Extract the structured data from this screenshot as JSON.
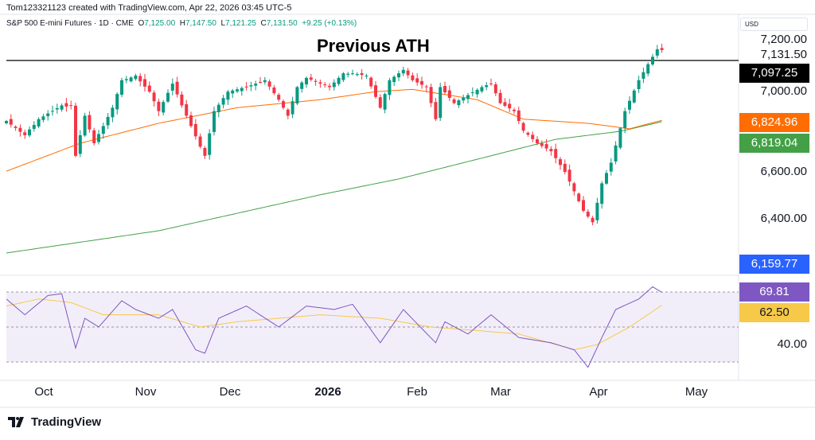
{
  "header": {
    "credit": "Tom123321123 created with TradingView.com, Apr 22, 2026 03:45 UTC-5",
    "symbol": "S&P 500 E-mini Futures · 1D · CME",
    "o_label": "O",
    "open": "7,125.00",
    "h_label": "H",
    "high": "7,147.50",
    "l_label": "L",
    "low": "7,121.25",
    "c_label": "C",
    "close": "7,131.50",
    "change": "+9.25 (+0.13%)"
  },
  "currency": "USD",
  "logo": "TradingView",
  "chart_data": {
    "type": "candlestick",
    "annotation": "Previous ATH",
    "ath_level": 7097.25,
    "closes": [
      6822,
      6806,
      6791,
      6775,
      6760,
      6785,
      6805,
      6830,
      6842,
      6855,
      6866,
      6878,
      6890,
      6885,
      6890,
      6670,
      6760,
      6845,
      6785,
      6725,
      6765,
      6800,
      6840,
      6880,
      6940,
      7000,
      7005,
      7012,
      7020,
      6995,
      6972,
      6950,
      6908,
      6865,
      6905,
      6945,
      6985,
      6938,
      6890,
      6845,
      6800,
      6755,
      6710,
      6670,
      6768,
      6865,
      6893,
      6922,
      6950,
      6955,
      6960,
      6966,
      6972,
      6978,
      6985,
      6992,
      7000,
      6972,
      6943,
      6915,
      6880,
      6845,
      6908,
      6970,
      6990,
      7010,
      7002,
      6993,
      6985,
      6978,
      6970,
      6990,
      7010,
      7030,
      7028,
      7030,
      7027,
      7023,
      7020,
      6973,
      6927,
      6880,
      6940,
      7000,
      7015,
      7030,
      7045,
      7022,
      7000,
      6990,
      6980,
      6970,
      6900,
      6830,
      6970,
      6947,
      6923,
      6900,
      6912,
      6923,
      6935,
      6947,
      6958,
      6970,
      6978,
      6985,
      6943,
      6900,
      6888,
      6877,
      6865,
      6822,
      6780,
      6762,
      6743,
      6725,
      6713,
      6702,
      6690,
      6660,
      6630,
      6600,
      6558,
      6515,
      6472,
      6430,
      6405,
      6380,
      6465,
      6550,
      6595,
      6640,
      6715,
      6790,
      6865,
      6910,
      6955,
      7000,
      7035,
      7070,
      7102,
      7135,
      7131.5
    ],
    "ma_fast": {
      "color": "#ff6d00",
      "last": "6,824.96",
      "points": [
        [
          0,
          6603
        ],
        [
          16,
          6725
        ],
        [
          33,
          6812
        ],
        [
          50,
          6880
        ],
        [
          68,
          6915
        ],
        [
          80,
          6950
        ],
        [
          88,
          6960
        ],
        [
          102,
          6915
        ],
        [
          112,
          6830
        ],
        [
          126,
          6812
        ],
        [
          135,
          6788
        ],
        [
          142,
          6824.96
        ]
      ]
    },
    "ma_slow": {
      "color": "#43a047",
      "last": "6,819.04",
      "points": [
        [
          0,
          6246
        ],
        [
          33,
          6343
        ],
        [
          68,
          6500
        ],
        [
          85,
          6569
        ],
        [
          102,
          6655
        ],
        [
          119,
          6742
        ],
        [
          133,
          6777
        ],
        [
          142,
          6819.04
        ]
      ]
    },
    "price_axis": {
      "ticks": [
        "7,200.00",
        "7,000.00",
        "6,600.00",
        "6,400.00"
      ],
      "tick_values": [
        7200,
        7000,
        6600,
        6400
      ],
      "last_price": "7,131.50",
      "ath_label": "7,097.25",
      "low_label": "6,159.77"
    },
    "time_axis": [
      "Oct",
      "Nov",
      "Dec",
      "2026",
      "Feb",
      "Mar",
      "Apr",
      "May"
    ],
    "rsi": {
      "color": "#7e57c2",
      "last": "69.81",
      "band": [
        30,
        70
      ],
      "tick": "40.00",
      "points": [
        [
          0,
          66
        ],
        [
          4,
          57
        ],
        [
          9,
          68
        ],
        [
          12,
          69
        ],
        [
          15,
          38
        ],
        [
          17,
          55
        ],
        [
          20,
          50
        ],
        [
          25,
          65
        ],
        [
          28,
          60
        ],
        [
          33,
          55
        ],
        [
          36,
          60
        ],
        [
          41,
          37
        ],
        [
          43,
          35
        ],
        [
          46,
          55
        ],
        [
          52,
          62
        ],
        [
          59,
          50
        ],
        [
          65,
          62
        ],
        [
          71,
          60
        ],
        [
          75,
          63
        ],
        [
          81,
          41
        ],
        [
          86,
          60
        ],
        [
          93,
          41
        ],
        [
          95,
          53
        ],
        [
          100,
          46
        ],
        [
          105,
          57
        ],
        [
          111,
          44
        ],
        [
          118,
          41
        ],
        [
          123,
          37
        ],
        [
          126,
          27
        ],
        [
          129,
          44
        ],
        [
          132,
          60
        ],
        [
          137,
          66
        ],
        [
          140,
          73
        ],
        [
          142,
          69.81
        ]
      ]
    },
    "rsi_signal": {
      "color": "#f7c948",
      "last": "62.50",
      "points": [
        [
          0,
          62
        ],
        [
          7,
          66
        ],
        [
          14,
          64
        ],
        [
          21,
          57
        ],
        [
          33,
          57
        ],
        [
          42,
          50
        ],
        [
          50,
          53
        ],
        [
          59,
          55
        ],
        [
          68,
          57
        ],
        [
          81,
          55
        ],
        [
          92,
          50
        ],
        [
          102,
          48
        ],
        [
          111,
          46
        ],
        [
          123,
          37
        ],
        [
          128,
          40
        ],
        [
          135,
          50
        ],
        [
          142,
          62.5
        ]
      ]
    },
    "colors": {
      "up": "#089981",
      "down": "#f23645"
    }
  }
}
